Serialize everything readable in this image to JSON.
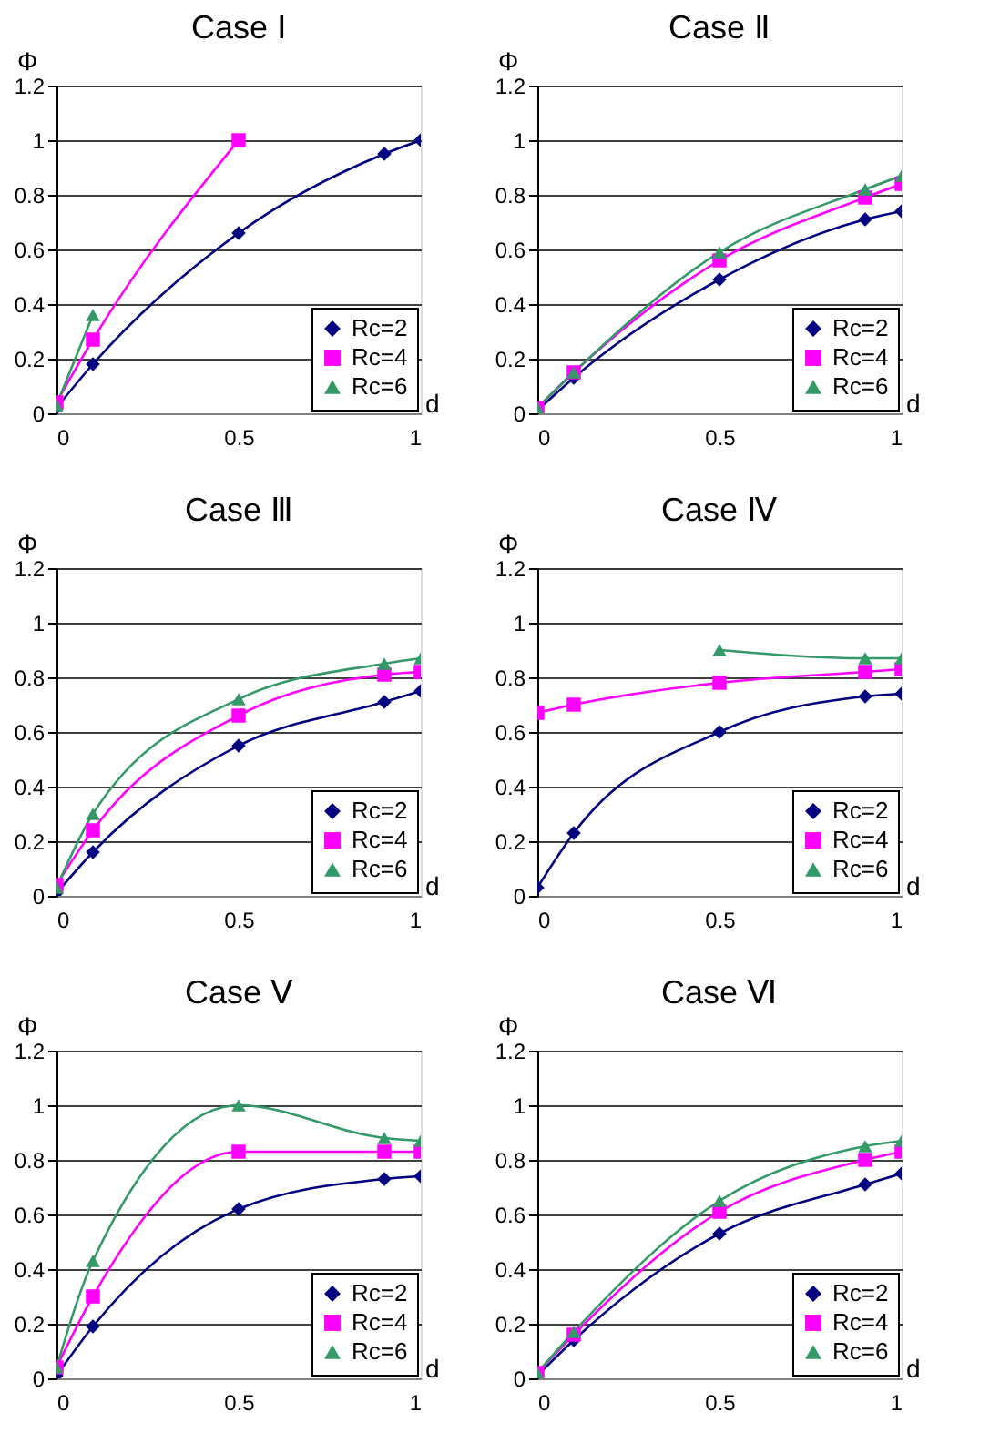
{
  "chart_data": [
    {
      "type": "line",
      "title": "Case Ⅰ",
      "xlabel": "d",
      "ylabel": "Φ",
      "x": [
        0,
        0.1,
        0.5,
        0.9,
        1
      ],
      "xlim": [
        0,
        1
      ],
      "ylim": [
        0,
        1.2
      ],
      "xticks": [
        0,
        0.5,
        1
      ],
      "yticks": [
        0,
        0.2,
        0.4,
        0.6,
        0.8,
        1,
        1.2
      ],
      "grid": "y",
      "legend": "bottom right",
      "series": [
        {
          "name": "Rc=2",
          "color": "#000080",
          "marker": "diamond",
          "values": [
            0.02,
            0.18,
            0.66,
            0.95,
            1.0
          ]
        },
        {
          "name": "Rc=4",
          "color": "#ff00ff",
          "marker": "square",
          "values": [
            0.04,
            0.27,
            1.0,
            null,
            null
          ]
        },
        {
          "name": "Rc=6",
          "color": "#339966",
          "marker": "triangle",
          "values": [
            0.03,
            0.36,
            null,
            null,
            null
          ]
        }
      ]
    },
    {
      "type": "line",
      "title": "Case Ⅱ",
      "xlabel": "d",
      "ylabel": "Φ",
      "x": [
        0,
        0.1,
        0.5,
        0.9,
        1
      ],
      "xlim": [
        0,
        1
      ],
      "ylim": [
        0,
        1.2
      ],
      "xticks": [
        0,
        0.5,
        1
      ],
      "yticks": [
        0,
        0.2,
        0.4,
        0.6,
        0.8,
        1,
        1.2
      ],
      "grid": "y",
      "legend": "bottom right",
      "series": [
        {
          "name": "Rc=2",
          "color": "#000080",
          "marker": "diamond",
          "values": [
            0.01,
            0.13,
            0.49,
            0.71,
            0.74
          ]
        },
        {
          "name": "Rc=4",
          "color": "#ff00ff",
          "marker": "square",
          "values": [
            0.02,
            0.15,
            0.56,
            0.79,
            0.84
          ]
        },
        {
          "name": "Rc=6",
          "color": "#339966",
          "marker": "triangle",
          "values": [
            0.02,
            0.15,
            0.59,
            0.82,
            0.87
          ]
        }
      ]
    },
    {
      "type": "line",
      "title": "Case Ⅲ",
      "xlabel": "d",
      "ylabel": "Φ",
      "x": [
        0,
        0.1,
        0.5,
        0.9,
        1
      ],
      "xlim": [
        0,
        1
      ],
      "ylim": [
        0,
        1.2
      ],
      "xticks": [
        0,
        0.5,
        1
      ],
      "yticks": [
        0,
        0.2,
        0.4,
        0.6,
        0.8,
        1,
        1.2
      ],
      "grid": "y",
      "legend": "bottom right",
      "series": [
        {
          "name": "Rc=2",
          "color": "#000080",
          "marker": "diamond",
          "values": [
            0.01,
            0.16,
            0.55,
            0.71,
            0.75
          ]
        },
        {
          "name": "Rc=4",
          "color": "#ff00ff",
          "marker": "square",
          "values": [
            0.04,
            0.24,
            0.66,
            0.81,
            0.82
          ]
        },
        {
          "name": "Rc=6",
          "color": "#339966",
          "marker": "triangle",
          "values": [
            0.03,
            0.3,
            0.72,
            0.85,
            0.87
          ]
        }
      ]
    },
    {
      "type": "line",
      "title": "Case Ⅳ",
      "xlabel": "d",
      "ylabel": "Φ",
      "x": [
        0,
        0.1,
        0.5,
        0.9,
        1
      ],
      "xlim": [
        0,
        1
      ],
      "ylim": [
        0,
        1.2
      ],
      "xticks": [
        0,
        0.5,
        1
      ],
      "yticks": [
        0,
        0.2,
        0.4,
        0.6,
        0.8,
        1,
        1.2
      ],
      "grid": "y",
      "legend": "bottom right",
      "series": [
        {
          "name": "Rc=2",
          "color": "#000080",
          "marker": "diamond",
          "values": [
            0.03,
            0.23,
            0.6,
            0.73,
            0.74
          ]
        },
        {
          "name": "Rc=4",
          "color": "#ff00ff",
          "marker": "square",
          "values": [
            0.67,
            0.7,
            0.78,
            0.82,
            0.83
          ]
        },
        {
          "name": "Rc=6",
          "color": "#339966",
          "marker": "triangle",
          "values": [
            null,
            null,
            0.9,
            0.87,
            0.87
          ]
        }
      ]
    },
    {
      "type": "line",
      "title": "Case Ⅴ",
      "xlabel": "d",
      "ylabel": "Φ",
      "x": [
        0,
        0.1,
        0.5,
        0.9,
        1
      ],
      "xlim": [
        0,
        1
      ],
      "ylim": [
        0,
        1.2
      ],
      "xticks": [
        0,
        0.5,
        1
      ],
      "yticks": [
        0,
        0.2,
        0.4,
        0.6,
        0.8,
        1,
        1.2
      ],
      "grid": "y",
      "legend": "bottom right",
      "series": [
        {
          "name": "Rc=2",
          "color": "#000080",
          "marker": "diamond",
          "values": [
            0.01,
            0.19,
            0.62,
            0.73,
            0.74
          ]
        },
        {
          "name": "Rc=4",
          "color": "#ff00ff",
          "marker": "square",
          "values": [
            0.04,
            0.3,
            0.83,
            0.83,
            0.83
          ]
        },
        {
          "name": "Rc=6",
          "color": "#339966",
          "marker": "triangle",
          "values": [
            0.04,
            0.43,
            1.0,
            0.88,
            0.87
          ]
        }
      ]
    },
    {
      "type": "line",
      "title": "Case Ⅵ",
      "xlabel": "d",
      "ylabel": "Φ",
      "x": [
        0,
        0.1,
        0.5,
        0.9,
        1
      ],
      "xlim": [
        0,
        1
      ],
      "ylim": [
        0,
        1.2
      ],
      "xticks": [
        0,
        0.5,
        1
      ],
      "yticks": [
        0,
        0.2,
        0.4,
        0.6,
        0.8,
        1,
        1.2
      ],
      "grid": "y",
      "legend": "bottom right",
      "series": [
        {
          "name": "Rc=2",
          "color": "#000080",
          "marker": "diamond",
          "values": [
            0.01,
            0.14,
            0.53,
            0.71,
            0.75
          ]
        },
        {
          "name": "Rc=4",
          "color": "#ff00ff",
          "marker": "square",
          "values": [
            0.02,
            0.16,
            0.61,
            0.8,
            0.83
          ]
        },
        {
          "name": "Rc=6",
          "color": "#339966",
          "marker": "triangle",
          "values": [
            0.02,
            0.17,
            0.65,
            0.85,
            0.87
          ]
        }
      ]
    }
  ]
}
